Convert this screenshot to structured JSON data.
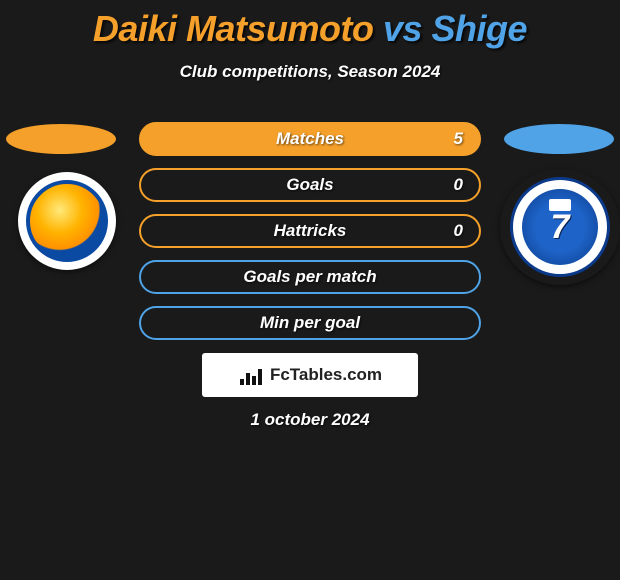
{
  "title": {
    "player1": "Daiki Matsumoto",
    "vs": "vs",
    "player2": "Shige",
    "player1_color": "#f5a02a",
    "vs_color": "#4fa3e6",
    "player2_color": "#4fa3e6"
  },
  "subtitle": "Club competitions, Season 2024",
  "left_ellipse_color": "#f5a02a",
  "right_ellipse_color": "#4fa3e6",
  "stats": [
    {
      "label": "Matches",
      "outline_color": "#f5a02a",
      "fill_start": "#f5a02a",
      "fill_percent": 100,
      "value_right": "5",
      "value_left": null
    },
    {
      "label": "Goals",
      "outline_color": "#f5a02a",
      "fill_start": null,
      "fill_percent": 0,
      "value_right": "0",
      "value_left": null
    },
    {
      "label": "Hattricks",
      "outline_color": "#f5a02a",
      "fill_start": null,
      "fill_percent": 0,
      "value_right": "0",
      "value_left": null
    },
    {
      "label": "Goals per match",
      "outline_color": "#4fa3e6",
      "fill_start": null,
      "fill_percent": 0,
      "value_right": null,
      "value_left": null
    },
    {
      "label": "Min per goal",
      "outline_color": "#4fa3e6",
      "fill_start": null,
      "fill_percent": 0,
      "value_right": null,
      "value_left": null
    }
  ],
  "fctables_label": "FcTables.com",
  "date": "1 october 2024",
  "background_color": "#1a1a1a",
  "badge_right_number": "7"
}
